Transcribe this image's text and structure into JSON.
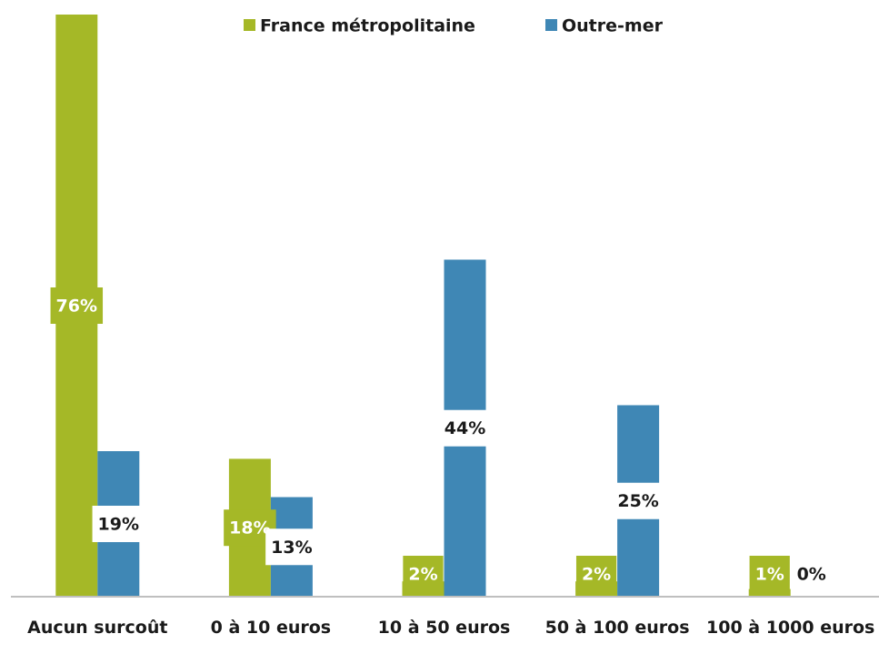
{
  "chart_data": {
    "type": "bar",
    "categories": [
      "Aucun surcoût",
      "0 à 10 euros",
      "10 à 50 euros",
      "50 à 100 euros",
      "100 à 1000 euros"
    ],
    "series": [
      {
        "name": "France métropolitaine",
        "color": "#a5b827",
        "values": [
          76,
          18,
          2,
          2,
          1
        ],
        "value_labels": [
          "76%",
          "18%",
          "2%",
          "2%",
          "1%"
        ]
      },
      {
        "name": "Outre-mer",
        "color": "#3f87b5",
        "values": [
          19,
          13,
          44,
          25,
          0
        ],
        "value_labels": [
          "19%",
          "13%",
          "44%",
          "25%",
          "0%"
        ]
      }
    ],
    "legend": "top"
  }
}
